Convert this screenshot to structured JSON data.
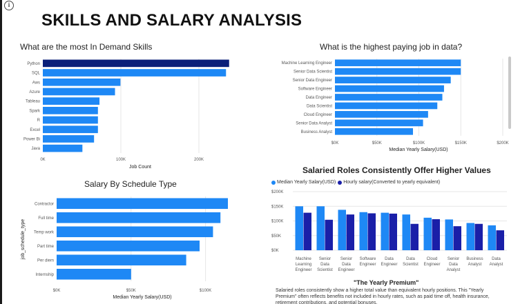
{
  "page": {
    "title": "SKILLS AND SALARY ANALYSIS"
  },
  "colors": {
    "primary": "#1e88f5",
    "highlight": "#0b1f7a",
    "secondary": "#1a1fa8",
    "grid": "#e6e6e6"
  },
  "icons": {
    "info": "info-circle-icon"
  },
  "info_icon_glyph": "i",
  "skills": {
    "title": "What are the most In Demand Skills",
    "chart_data": {
      "type": "bar",
      "orientation": "horizontal",
      "categories": [
        "Python",
        "SQL",
        "Aws",
        "Azure",
        "Tableau",
        "Spark",
        "R",
        "Excel",
        "Power Bi",
        "Java"
      ],
      "values": [
        240000,
        236000,
        100000,
        93000,
        73000,
        71000,
        71000,
        71000,
        66000,
        51000
      ],
      "highlight": "Python",
      "xlabel": "Job Count",
      "xticks": [
        "0K",
        "100K",
        "200K"
      ],
      "xlim": [
        0,
        250000
      ],
      "grid": true
    }
  },
  "highest_paying": {
    "title": "What is the highest paying job in data?",
    "chart_data": {
      "type": "bar",
      "orientation": "horizontal",
      "categories": [
        "Machine Learning Engineer",
        "Senior Data Scientist",
        "Senior Data Engineer",
        "Software Engineer",
        "Data Engineer",
        "Data Scientist",
        "Cloud Engineer",
        "Senior Data Analyst",
        "Business Analyst"
      ],
      "values": [
        150000,
        150000,
        138000,
        130000,
        128000,
        122000,
        111000,
        105000,
        93000
      ],
      "xlabel": "Median Yearly Salary(USD)",
      "xticks": [
        "$0K",
        "$50K",
        "$100K",
        "$150K",
        "$200K"
      ],
      "xlim": [
        0,
        200000
      ],
      "grid": true
    }
  },
  "schedule": {
    "title": "Salary By Schedule Type",
    "chart_data": {
      "type": "bar",
      "orientation": "horizontal",
      "categories": [
        "Contractor",
        "Full time",
        "Temp work",
        "Part time",
        "Per diem",
        "Internship"
      ],
      "values": [
        115000,
        110000,
        105000,
        96000,
        87000,
        50000
      ],
      "xlabel": "Median Yearly Salary(USD)",
      "ylabel": "job_schedule_type",
      "xticks": [
        "$0K",
        "$50K",
        "$100K"
      ],
      "xlim": [
        0,
        115000
      ],
      "grid": true
    }
  },
  "salaried": {
    "title": "Salaried Roles Consistently Offer Higher Values",
    "chart_data": {
      "type": "bar",
      "categories": [
        [
          "Machine",
          "Learning",
          "Engineer"
        ],
        [
          "Senior",
          "Data",
          "Scientist"
        ],
        [
          "Senior",
          "Data",
          "Engineer"
        ],
        [
          "Software",
          "Engineer"
        ],
        [
          "Data",
          "Engineer"
        ],
        [
          "Data",
          "Scientist"
        ],
        [
          "Cloud",
          "Engineer"
        ],
        [
          "Senior",
          "Data",
          "Analyst"
        ],
        [
          "Business",
          "Analyst"
        ],
        [
          "Data",
          "Analyst"
        ]
      ],
      "series": [
        {
          "name": "Median Yearly Salary(USD)",
          "values": [
            150000,
            150000,
            138000,
            130000,
            128000,
            122000,
            111000,
            105000,
            93000,
            85000
          ]
        },
        {
          "name": "Hourly salary(Converted to yearly equivalent)",
          "values": [
            128000,
            104000,
            122000,
            126000,
            125000,
            90000,
            106000,
            82000,
            90000,
            68000
          ]
        }
      ],
      "yticks": [
        "$0K",
        "$50K",
        "$100K",
        "$150K",
        "$200K"
      ],
      "ylim": [
        0,
        200000
      ],
      "grid": true
    },
    "note_title": "\"The Yearly Premium\"",
    "note_text": "Salaried roles consistently show a higher total value than equivalent hourly positions. This \"Yearly Premium\" often reflects benefits not included in hourly rates, such as paid time off, health insurance, retirement contributions, and potential bonuses."
  }
}
